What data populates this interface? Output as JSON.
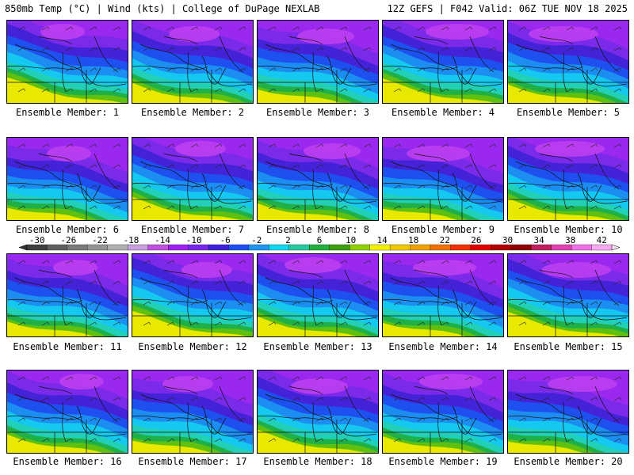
{
  "header": {
    "left_title": "850mb Temp (°C) | Wind (kts) | College of DuPage NEXLAB",
    "right_title": "12Z GEFS | F042 Valid: 06Z TUE NOV 18 2025"
  },
  "members": [
    {
      "label": "Ensemble Member: 1"
    },
    {
      "label": "Ensemble Member: 2"
    },
    {
      "label": "Ensemble Member: 3"
    },
    {
      "label": "Ensemble Member: 4"
    },
    {
      "label": "Ensemble Member: 5"
    },
    {
      "label": "Ensemble Member: 6"
    },
    {
      "label": "Ensemble Member: 7"
    },
    {
      "label": "Ensemble Member: 8"
    },
    {
      "label": "Ensemble Member: 9"
    },
    {
      "label": "Ensemble Member: 10"
    },
    {
      "label": "Ensemble Member: 11"
    },
    {
      "label": "Ensemble Member: 12"
    },
    {
      "label": "Ensemble Member: 13"
    },
    {
      "label": "Ensemble Member: 14"
    },
    {
      "label": "Ensemble Member: 15"
    },
    {
      "label": "Ensemble Member: 16"
    },
    {
      "label": "Ensemble Member: 17"
    },
    {
      "label": "Ensemble Member: 18"
    },
    {
      "label": "Ensemble Member: 19"
    },
    {
      "label": "Ensemble Member: 20"
    }
  ],
  "colorbar": {
    "ticks": [
      "-30",
      "-26",
      "-22",
      "-18",
      "-14",
      "-10",
      "-6",
      "-2",
      "2",
      "6",
      "10",
      "14",
      "18",
      "22",
      "26",
      "30",
      "34",
      "38",
      "42"
    ],
    "colors": [
      "#404040",
      "#606060",
      "#7a7a7a",
      "#959595",
      "#b0b0b0",
      "#c8a0e0",
      "#c050e0",
      "#a020f0",
      "#7828e8",
      "#4020d8",
      "#1e50f0",
      "#1e96f0",
      "#10d8f0",
      "#28c8a0",
      "#20b040",
      "#3aa010",
      "#90d000",
      "#f0f000",
      "#f0c800",
      "#f0a000",
      "#f07000",
      "#f03000",
      "#e00000",
      "#b00000",
      "#900000",
      "#c02060",
      "#e040b0",
      "#f070e8",
      "#f8a8f0"
    ]
  }
}
